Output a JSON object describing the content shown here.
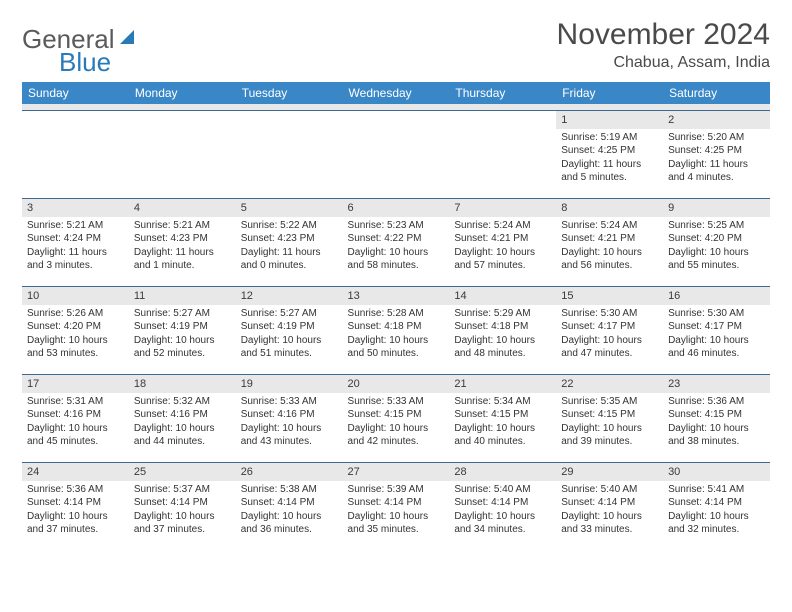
{
  "logo": {
    "text1": "General",
    "text2": "Blue"
  },
  "title": "November 2024",
  "location": "Chabua, Assam, India",
  "colors": {
    "header_bg": "#3a87c7",
    "header_text": "#ffffff",
    "row_border": "#3a6a95",
    "daynum_bg": "#e8e8e8",
    "page_bg": "#ffffff",
    "text": "#333333",
    "title_text": "#4a4a4a",
    "logo_gray": "#5a5a5a",
    "logo_blue": "#2a7ab8"
  },
  "day_headers": [
    "Sunday",
    "Monday",
    "Tuesday",
    "Wednesday",
    "Thursday",
    "Friday",
    "Saturday"
  ],
  "weeks": [
    [
      {
        "empty": true
      },
      {
        "empty": true
      },
      {
        "empty": true
      },
      {
        "empty": true
      },
      {
        "empty": true
      },
      {
        "n": "1",
        "sunrise": "Sunrise: 5:19 AM",
        "sunset": "Sunset: 4:25 PM",
        "daylight": "Daylight: 11 hours and 5 minutes."
      },
      {
        "n": "2",
        "sunrise": "Sunrise: 5:20 AM",
        "sunset": "Sunset: 4:25 PM",
        "daylight": "Daylight: 11 hours and 4 minutes."
      }
    ],
    [
      {
        "n": "3",
        "sunrise": "Sunrise: 5:21 AM",
        "sunset": "Sunset: 4:24 PM",
        "daylight": "Daylight: 11 hours and 3 minutes."
      },
      {
        "n": "4",
        "sunrise": "Sunrise: 5:21 AM",
        "sunset": "Sunset: 4:23 PM",
        "daylight": "Daylight: 11 hours and 1 minute."
      },
      {
        "n": "5",
        "sunrise": "Sunrise: 5:22 AM",
        "sunset": "Sunset: 4:23 PM",
        "daylight": "Daylight: 11 hours and 0 minutes."
      },
      {
        "n": "6",
        "sunrise": "Sunrise: 5:23 AM",
        "sunset": "Sunset: 4:22 PM",
        "daylight": "Daylight: 10 hours and 58 minutes."
      },
      {
        "n": "7",
        "sunrise": "Sunrise: 5:24 AM",
        "sunset": "Sunset: 4:21 PM",
        "daylight": "Daylight: 10 hours and 57 minutes."
      },
      {
        "n": "8",
        "sunrise": "Sunrise: 5:24 AM",
        "sunset": "Sunset: 4:21 PM",
        "daylight": "Daylight: 10 hours and 56 minutes."
      },
      {
        "n": "9",
        "sunrise": "Sunrise: 5:25 AM",
        "sunset": "Sunset: 4:20 PM",
        "daylight": "Daylight: 10 hours and 55 minutes."
      }
    ],
    [
      {
        "n": "10",
        "sunrise": "Sunrise: 5:26 AM",
        "sunset": "Sunset: 4:20 PM",
        "daylight": "Daylight: 10 hours and 53 minutes."
      },
      {
        "n": "11",
        "sunrise": "Sunrise: 5:27 AM",
        "sunset": "Sunset: 4:19 PM",
        "daylight": "Daylight: 10 hours and 52 minutes."
      },
      {
        "n": "12",
        "sunrise": "Sunrise: 5:27 AM",
        "sunset": "Sunset: 4:19 PM",
        "daylight": "Daylight: 10 hours and 51 minutes."
      },
      {
        "n": "13",
        "sunrise": "Sunrise: 5:28 AM",
        "sunset": "Sunset: 4:18 PM",
        "daylight": "Daylight: 10 hours and 50 minutes."
      },
      {
        "n": "14",
        "sunrise": "Sunrise: 5:29 AM",
        "sunset": "Sunset: 4:18 PM",
        "daylight": "Daylight: 10 hours and 48 minutes."
      },
      {
        "n": "15",
        "sunrise": "Sunrise: 5:30 AM",
        "sunset": "Sunset: 4:17 PM",
        "daylight": "Daylight: 10 hours and 47 minutes."
      },
      {
        "n": "16",
        "sunrise": "Sunrise: 5:30 AM",
        "sunset": "Sunset: 4:17 PM",
        "daylight": "Daylight: 10 hours and 46 minutes."
      }
    ],
    [
      {
        "n": "17",
        "sunrise": "Sunrise: 5:31 AM",
        "sunset": "Sunset: 4:16 PM",
        "daylight": "Daylight: 10 hours and 45 minutes."
      },
      {
        "n": "18",
        "sunrise": "Sunrise: 5:32 AM",
        "sunset": "Sunset: 4:16 PM",
        "daylight": "Daylight: 10 hours and 44 minutes."
      },
      {
        "n": "19",
        "sunrise": "Sunrise: 5:33 AM",
        "sunset": "Sunset: 4:16 PM",
        "daylight": "Daylight: 10 hours and 43 minutes."
      },
      {
        "n": "20",
        "sunrise": "Sunrise: 5:33 AM",
        "sunset": "Sunset: 4:15 PM",
        "daylight": "Daylight: 10 hours and 42 minutes."
      },
      {
        "n": "21",
        "sunrise": "Sunrise: 5:34 AM",
        "sunset": "Sunset: 4:15 PM",
        "daylight": "Daylight: 10 hours and 40 minutes."
      },
      {
        "n": "22",
        "sunrise": "Sunrise: 5:35 AM",
        "sunset": "Sunset: 4:15 PM",
        "daylight": "Daylight: 10 hours and 39 minutes."
      },
      {
        "n": "23",
        "sunrise": "Sunrise: 5:36 AM",
        "sunset": "Sunset: 4:15 PM",
        "daylight": "Daylight: 10 hours and 38 minutes."
      }
    ],
    [
      {
        "n": "24",
        "sunrise": "Sunrise: 5:36 AM",
        "sunset": "Sunset: 4:14 PM",
        "daylight": "Daylight: 10 hours and 37 minutes."
      },
      {
        "n": "25",
        "sunrise": "Sunrise: 5:37 AM",
        "sunset": "Sunset: 4:14 PM",
        "daylight": "Daylight: 10 hours and 37 minutes."
      },
      {
        "n": "26",
        "sunrise": "Sunrise: 5:38 AM",
        "sunset": "Sunset: 4:14 PM",
        "daylight": "Daylight: 10 hours and 36 minutes."
      },
      {
        "n": "27",
        "sunrise": "Sunrise: 5:39 AM",
        "sunset": "Sunset: 4:14 PM",
        "daylight": "Daylight: 10 hours and 35 minutes."
      },
      {
        "n": "28",
        "sunrise": "Sunrise: 5:40 AM",
        "sunset": "Sunset: 4:14 PM",
        "daylight": "Daylight: 10 hours and 34 minutes."
      },
      {
        "n": "29",
        "sunrise": "Sunrise: 5:40 AM",
        "sunset": "Sunset: 4:14 PM",
        "daylight": "Daylight: 10 hours and 33 minutes."
      },
      {
        "n": "30",
        "sunrise": "Sunrise: 5:41 AM",
        "sunset": "Sunset: 4:14 PM",
        "daylight": "Daylight: 10 hours and 32 minutes."
      }
    ]
  ]
}
